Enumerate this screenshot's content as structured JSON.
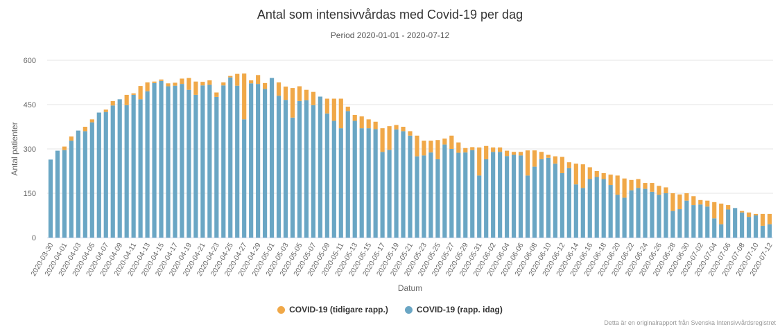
{
  "chart_data": {
    "type": "bar",
    "stacked": true,
    "title": "Antal som intensivvårdas med Covid-19 per dag",
    "subtitle": "Period 2020-01-01 - 2020-07-12",
    "xlabel": "Datum",
    "ylabel": "Antal patienter",
    "ylim": [
      0,
      600
    ],
    "yticks": [
      0,
      150,
      300,
      450,
      600
    ],
    "grid": true,
    "legend_position": "bottom-center",
    "categories": [
      "2020-03-30",
      "2020-03-31",
      "2020-04-01",
      "2020-04-02",
      "2020-04-03",
      "2020-04-04",
      "2020-04-05",
      "2020-04-06",
      "2020-04-07",
      "2020-04-08",
      "2020-04-09",
      "2020-04-10",
      "2020-04-11",
      "2020-04-12",
      "2020-04-13",
      "2020-04-14",
      "2020-04-15",
      "2020-04-16",
      "2020-04-17",
      "2020-04-18",
      "2020-04-19",
      "2020-04-20",
      "2020-04-21",
      "2020-04-22",
      "2020-04-23",
      "2020-04-24",
      "2020-04-25",
      "2020-04-26",
      "2020-04-27",
      "2020-04-28",
      "2020-04-29",
      "2020-04-30",
      "2020-05-01",
      "2020-05-02",
      "2020-05-03",
      "2020-05-04",
      "2020-05-05",
      "2020-05-06",
      "2020-05-07",
      "2020-05-08",
      "2020-05-09",
      "2020-05-10",
      "2020-05-11",
      "2020-05-12",
      "2020-05-13",
      "2020-05-14",
      "2020-05-15",
      "2020-05-16",
      "2020-05-17",
      "2020-05-18",
      "2020-05-19",
      "2020-05-20",
      "2020-05-21",
      "2020-05-22",
      "2020-05-23",
      "2020-05-24",
      "2020-05-25",
      "2020-05-26",
      "2020-05-27",
      "2020-05-28",
      "2020-05-29",
      "2020-05-30",
      "2020-05-31",
      "2020-06-01",
      "2020-06-02",
      "2020-06-03",
      "2020-06-04",
      "2020-06-05",
      "2020-06-06",
      "2020-06-07",
      "2020-06-08",
      "2020-06-09",
      "2020-06-10",
      "2020-06-11",
      "2020-06-12",
      "2020-06-13",
      "2020-06-14",
      "2020-06-15",
      "2020-06-16",
      "2020-06-17",
      "2020-06-18",
      "2020-06-19",
      "2020-06-20",
      "2020-06-21",
      "2020-06-22",
      "2020-06-23",
      "2020-06-24",
      "2020-06-25",
      "2020-06-26",
      "2020-06-27",
      "2020-06-28",
      "2020-06-29",
      "2020-06-30",
      "2020-07-01",
      "2020-07-02",
      "2020-07-03",
      "2020-07-04",
      "2020-07-05",
      "2020-07-06",
      "2020-07-07",
      "2020-07-08",
      "2020-07-09",
      "2020-07-10",
      "2020-07-11",
      "2020-07-12"
    ],
    "xtick_labels": [
      "2020-03-30",
      "2020-04-01",
      "2020-04-03",
      "2020-04-05",
      "2020-04-07",
      "2020-04-09",
      "2020-04-11",
      "2020-04-13",
      "2020-04-15",
      "2020-04-17",
      "2020-04-19",
      "2020-04-21",
      "2020-04-23",
      "2020-04-25",
      "2020-04-27",
      "2020-04-29",
      "2020-05-01",
      "2020-05-03",
      "2020-05-05",
      "2020-05-07",
      "2020-05-09",
      "2020-05-11",
      "2020-05-13",
      "2020-05-15",
      "2020-05-17",
      "2020-05-19",
      "2020-05-21",
      "2020-05-23",
      "2020-05-25",
      "2020-05-27",
      "2020-05-29",
      "2020-05-31",
      "2020-06-02",
      "2020-06-04",
      "2020-06-06",
      "2020-06-08",
      "2020-06-10",
      "2020-06-12",
      "2020-06-14",
      "2020-06-16",
      "2020-06-18",
      "2020-06-20",
      "2020-06-22",
      "2020-06-24",
      "2020-06-26",
      "2020-06-28",
      "2020-06-30",
      "2020-07-02",
      "2020-07-04",
      "2020-07-06",
      "2020-07-08",
      "2020-07-10",
      "2020-07-12"
    ],
    "series": [
      {
        "name": "COVID-19 (rapp. idag)",
        "color": "#6aa6c4",
        "values": [
          264,
          294,
          296,
          328,
          362,
          360,
          390,
          423,
          425,
          447,
          468,
          448,
          483,
          468,
          495,
          523,
          530,
          512,
          514,
          520,
          500,
          483,
          515,
          517,
          476,
          515,
          542,
          514,
          400,
          522,
          520,
          503,
          540,
          480,
          466,
          406,
          462,
          465,
          448,
          477,
          420,
          395,
          370,
          428,
          395,
          370,
          370,
          367,
          290,
          297,
          366,
          360,
          345,
          275,
          278,
          288,
          265,
          315,
          300,
          287,
          288,
          296,
          210,
          265,
          290,
          290,
          276,
          280,
          278,
          210,
          240,
          265,
          270,
          250,
          218,
          235,
          180,
          168,
          198,
          205,
          198,
          178,
          145,
          135,
          160,
          168,
          165,
          155,
          145,
          150,
          90,
          96,
          125,
          110,
          112,
          105,
          65,
          45,
          95,
          100,
          85,
          70,
          75,
          40,
          45
        ],
        "description": "lower (blue) stacked segment"
      },
      {
        "name": "COVID-19 (tidigare rapp.)",
        "color": "#f0a848",
        "values": [
          0,
          0,
          12,
          14,
          0,
          15,
          10,
          0,
          8,
          15,
          0,
          35,
          5,
          45,
          30,
          5,
          5,
          10,
          10,
          18,
          40,
          45,
          12,
          15,
          15,
          10,
          5,
          40,
          155,
          10,
          30,
          20,
          0,
          45,
          45,
          100,
          50,
          35,
          45,
          0,
          50,
          75,
          100,
          15,
          20,
          40,
          30,
          25,
          80,
          80,
          15,
          15,
          15,
          70,
          50,
          40,
          65,
          20,
          45,
          35,
          15,
          10,
          95,
          45,
          15,
          15,
          18,
          10,
          12,
          85,
          55,
          25,
          10,
          25,
          55,
          20,
          70,
          80,
          40,
          20,
          20,
          35,
          65,
          65,
          35,
          30,
          20,
          30,
          30,
          20,
          60,
          50,
          25,
          30,
          15,
          20,
          55,
          70,
          15,
          0,
          5,
          15,
          5,
          40,
          35
        ],
        "description": "upper (orange) stacked segment"
      }
    ]
  },
  "legend": {
    "items": [
      {
        "label": "COVID-19 (tidigare rapp.)",
        "color": "#f0a848"
      },
      {
        "label": "COVID-19 (rapp. idag)",
        "color": "#6aa6c4"
      }
    ]
  },
  "credit": "Detta är en originalrapport från Svenska Intensivvårdsregistret"
}
